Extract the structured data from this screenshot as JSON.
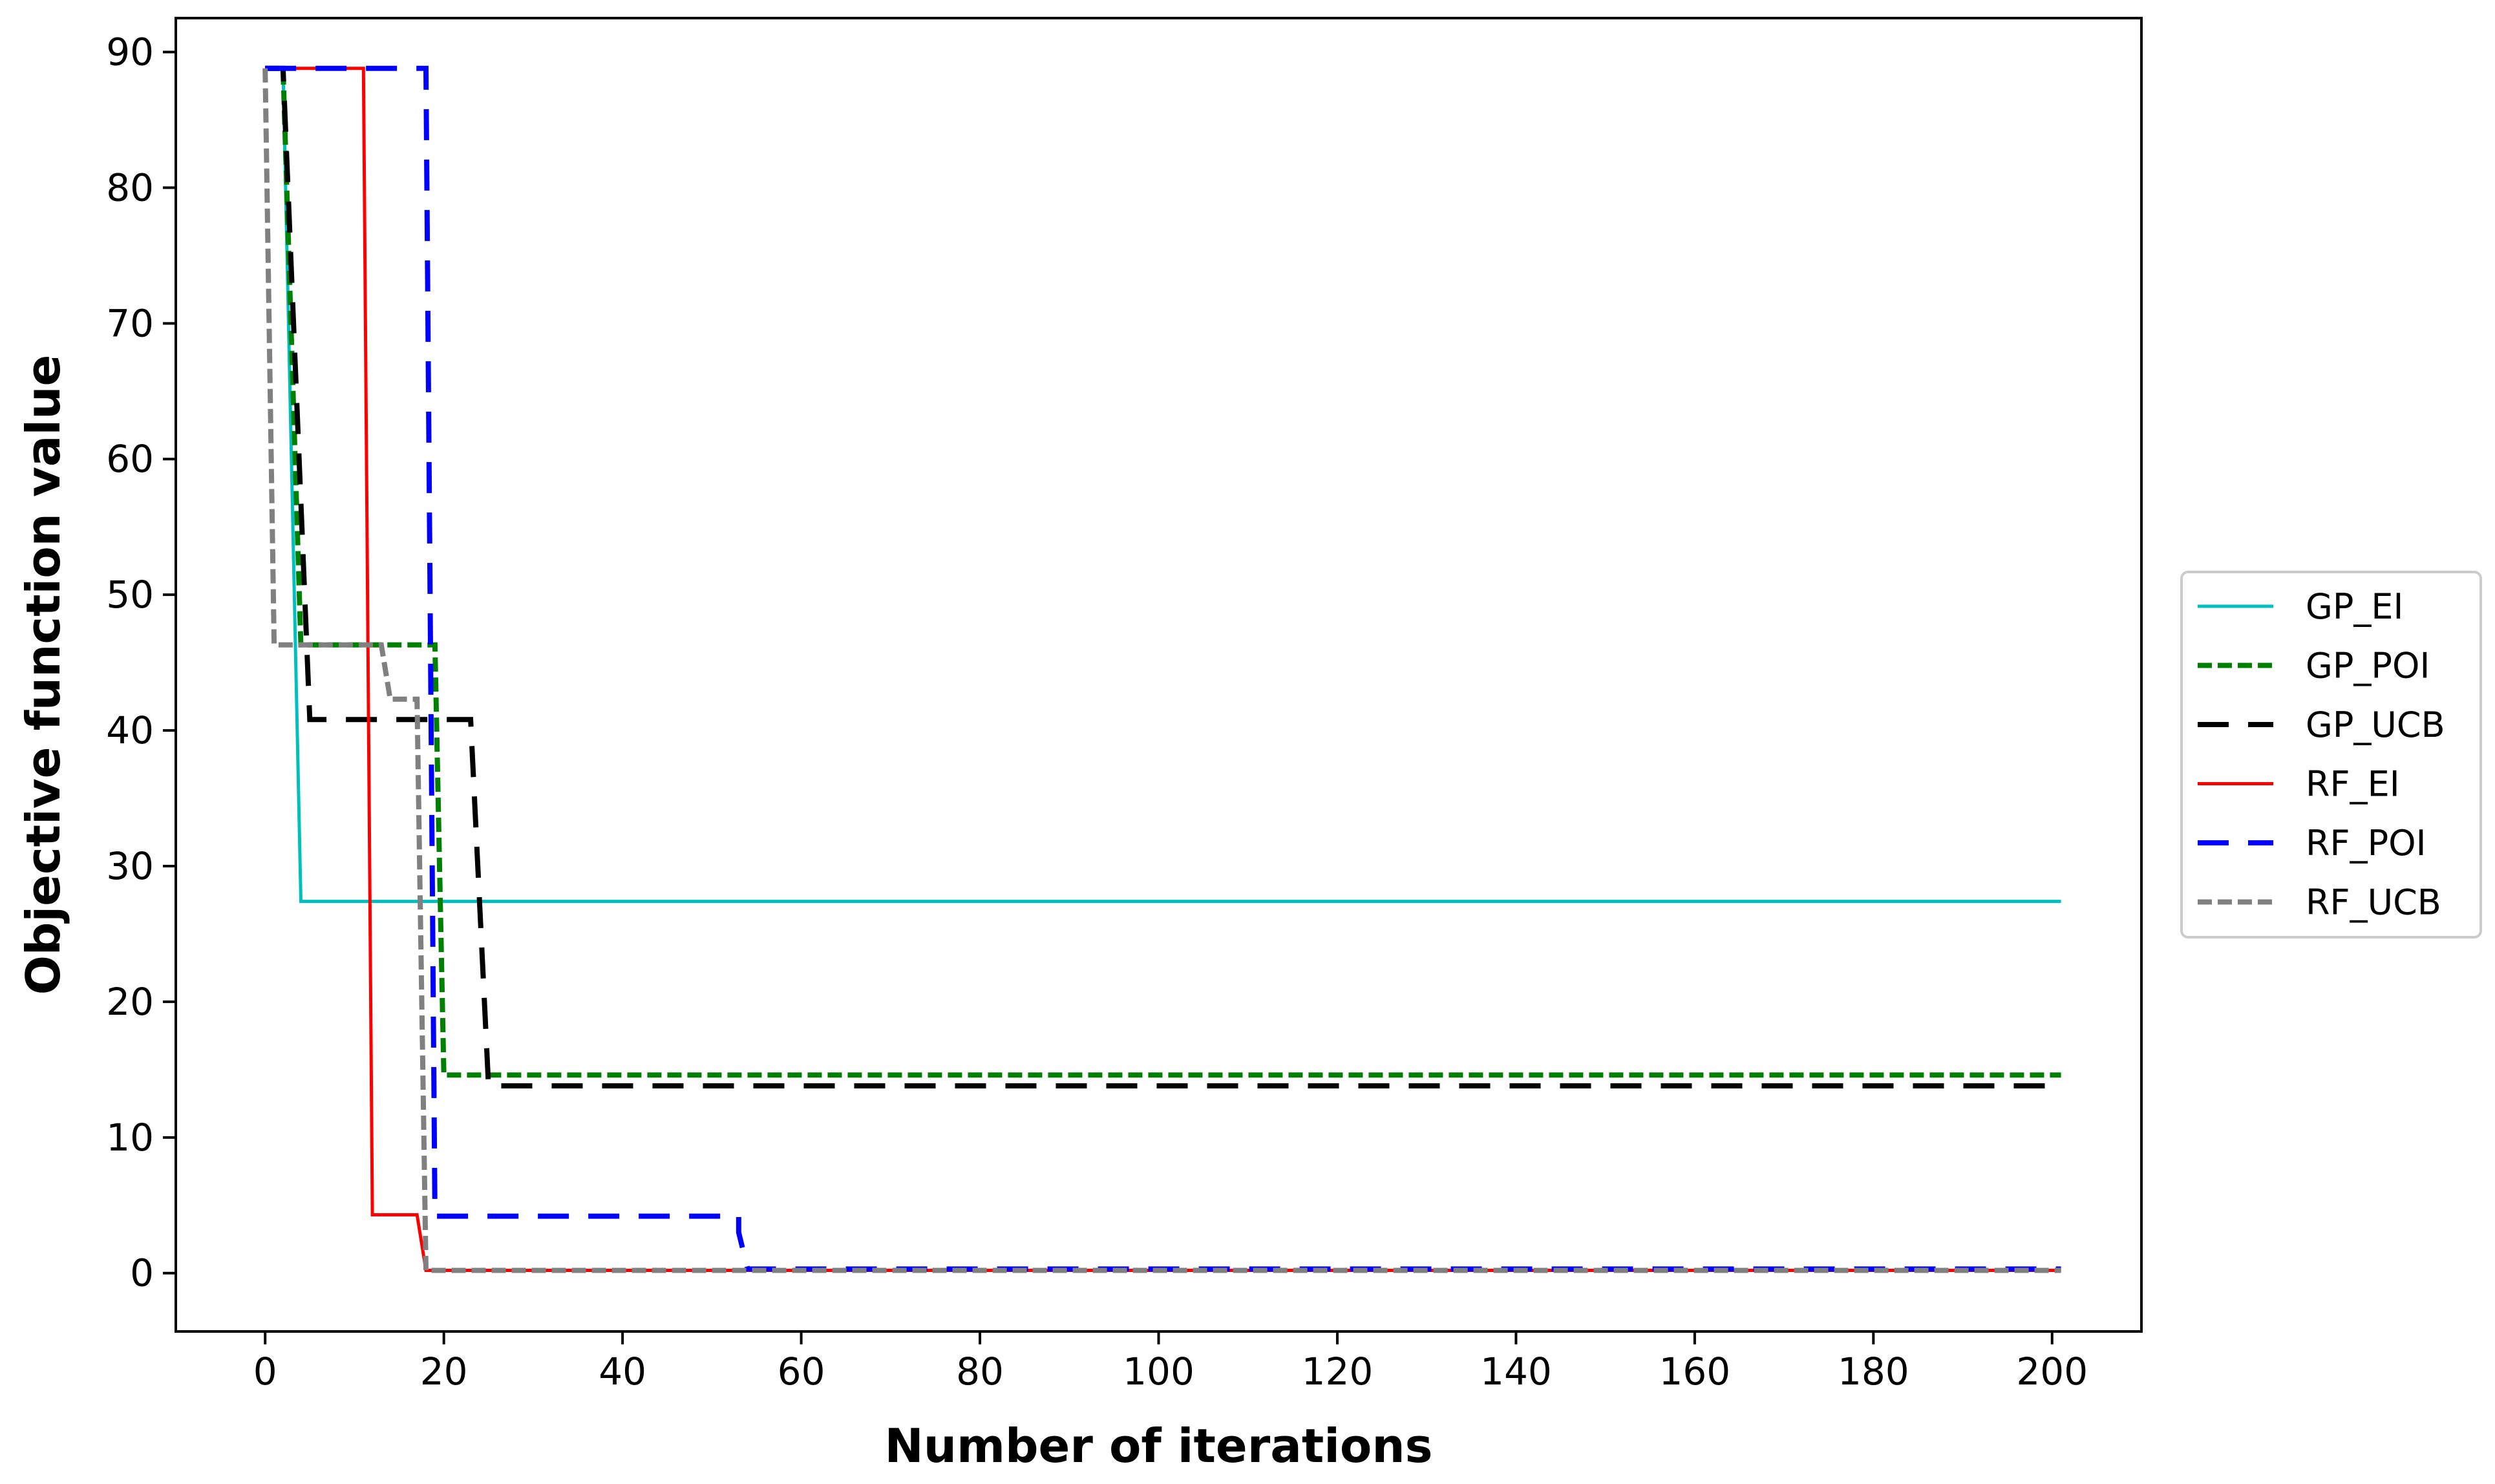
{
  "chart_data": {
    "type": "line",
    "title": "",
    "xlabel": "Number of iterations",
    "ylabel": "Objective function value",
    "xlim": [
      -10,
      210
    ],
    "ylim": [
      -4.3,
      92.5
    ],
    "xticks": [
      0,
      20,
      40,
      60,
      80,
      100,
      120,
      140,
      160,
      180,
      200
    ],
    "yticks": [
      0,
      10,
      20,
      30,
      40,
      50,
      60,
      70,
      80,
      90
    ],
    "grid": false,
    "legend_position": "center-right outside",
    "series": [
      {
        "name": "GP_EI",
        "color": "#00bfbf",
        "style": "solid",
        "x": [
          0,
          2,
          4,
          201
        ],
        "y": [
          88.8,
          88.8,
          27.4,
          27.4
        ]
      },
      {
        "name": "GP_POI",
        "color": "#008000",
        "style": "dashed",
        "x": [
          0,
          2,
          4,
          19,
          20,
          201
        ],
        "y": [
          88.8,
          88.8,
          46.3,
          46.3,
          14.6,
          14.6
        ]
      },
      {
        "name": "GP_UCB",
        "color": "#000000",
        "style": "longdash",
        "x": [
          0,
          2,
          5,
          23,
          25,
          201
        ],
        "y": [
          88.8,
          88.8,
          40.8,
          40.8,
          13.8,
          13.8
        ]
      },
      {
        "name": "RF_EI",
        "color": "#ff0000",
        "style": "solid",
        "x": [
          0,
          11,
          12,
          17,
          18,
          201
        ],
        "y": [
          88.8,
          88.8,
          4.3,
          4.3,
          0.2,
          0.2
        ]
      },
      {
        "name": "RF_POI",
        "color": "#0000ff",
        "style": "longdash",
        "x": [
          0,
          18,
          19,
          53,
          53,
          54,
          201
        ],
        "y": [
          88.8,
          88.8,
          4.2,
          4.2,
          3.0,
          0.3,
          0.3
        ]
      },
      {
        "name": "RF_UCB",
        "color": "#808080",
        "style": "dashed",
        "x": [
          0,
          1,
          13,
          14,
          17,
          18,
          201
        ],
        "y": [
          88.8,
          46.3,
          46.3,
          42.3,
          42.3,
          0.2,
          0.2
        ]
      }
    ]
  }
}
